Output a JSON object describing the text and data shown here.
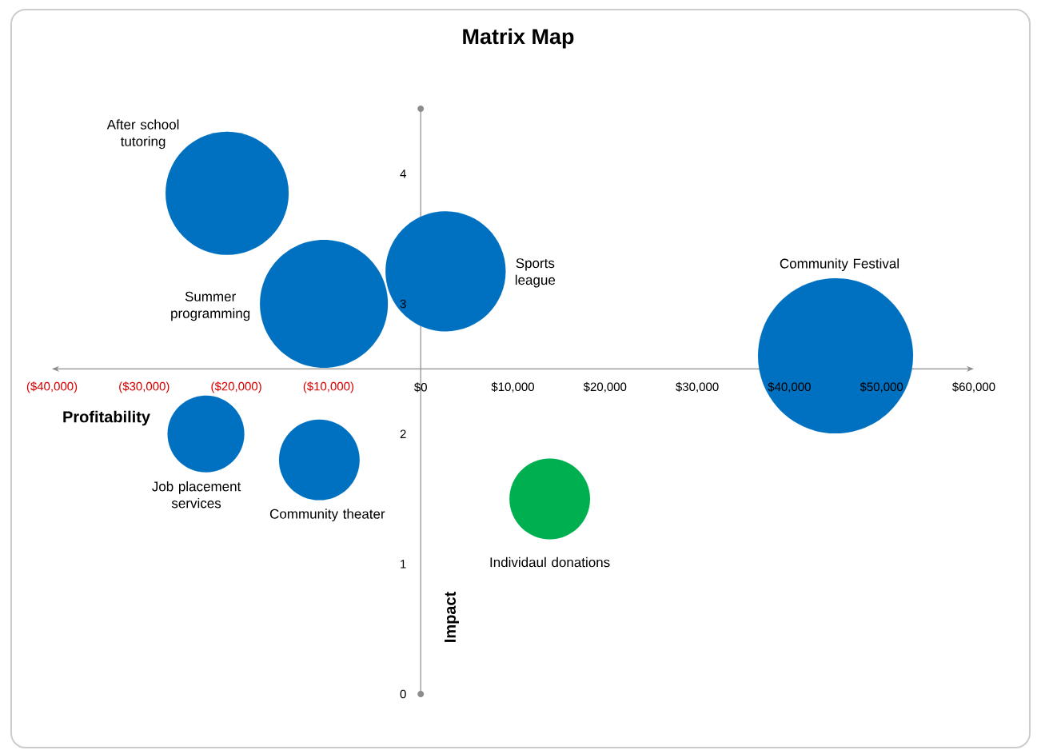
{
  "chart_data": {
    "type": "bubble",
    "title": "Matrix Map",
    "xlabel": "Profitability",
    "ylabel": "Impact",
    "xlim": [
      -40000,
      60000
    ],
    "ylim": [
      0,
      4.5
    ],
    "xticks": [
      {
        "value": -40000,
        "label": "($40,000)"
      },
      {
        "value": -30000,
        "label": "($30,000)"
      },
      {
        "value": -20000,
        "label": "($20,000)"
      },
      {
        "value": -10000,
        "label": "($10,000)"
      },
      {
        "value": 0,
        "label": "$0"
      },
      {
        "value": 10000,
        "label": "$10,000"
      },
      {
        "value": 20000,
        "label": "$20,000"
      },
      {
        "value": 30000,
        "label": "$30,000"
      },
      {
        "value": 40000,
        "label": "$40,000"
      },
      {
        "value": 50000,
        "label": "$50,000"
      },
      {
        "value": 60000,
        "label": "$60,000"
      }
    ],
    "yticks": [
      0,
      1,
      2,
      3,
      4
    ],
    "grid": false,
    "series": [
      {
        "name": "After school tutoring",
        "color": "#0070c0",
        "x": [
          -21000
        ],
        "values": [
          3.85
        ],
        "sizes": [
          0.63
        ]
      },
      {
        "name": "Summer programming",
        "color": "#0070c0",
        "x": [
          -10500
        ],
        "values": [
          3
        ],
        "sizes": [
          0.68
        ]
      },
      {
        "name": "Sports league",
        "color": "#0070c0",
        "x": [
          2700
        ],
        "values": [
          3.25
        ],
        "sizes": [
          0.6
        ]
      },
      {
        "name": "Community Festival",
        "color": "#0070c0",
        "x": [
          45000
        ],
        "values": [
          2.6
        ],
        "sizes": [
          1
        ]
      },
      {
        "name": "Job placement services",
        "color": "#0070c0",
        "x": [
          -23300
        ],
        "values": [
          2
        ],
        "sizes": [
          0.245
        ]
      },
      {
        "name": "Community theater",
        "color": "#0070c0",
        "x": [
          -11000
        ],
        "values": [
          1.8
        ],
        "sizes": [
          0.27
        ]
      },
      {
        "name": "Individaul donations",
        "color": "#00b050",
        "x": [
          14000
        ],
        "values": [
          1.5
        ],
        "sizes": [
          0.27
        ]
      }
    ]
  }
}
